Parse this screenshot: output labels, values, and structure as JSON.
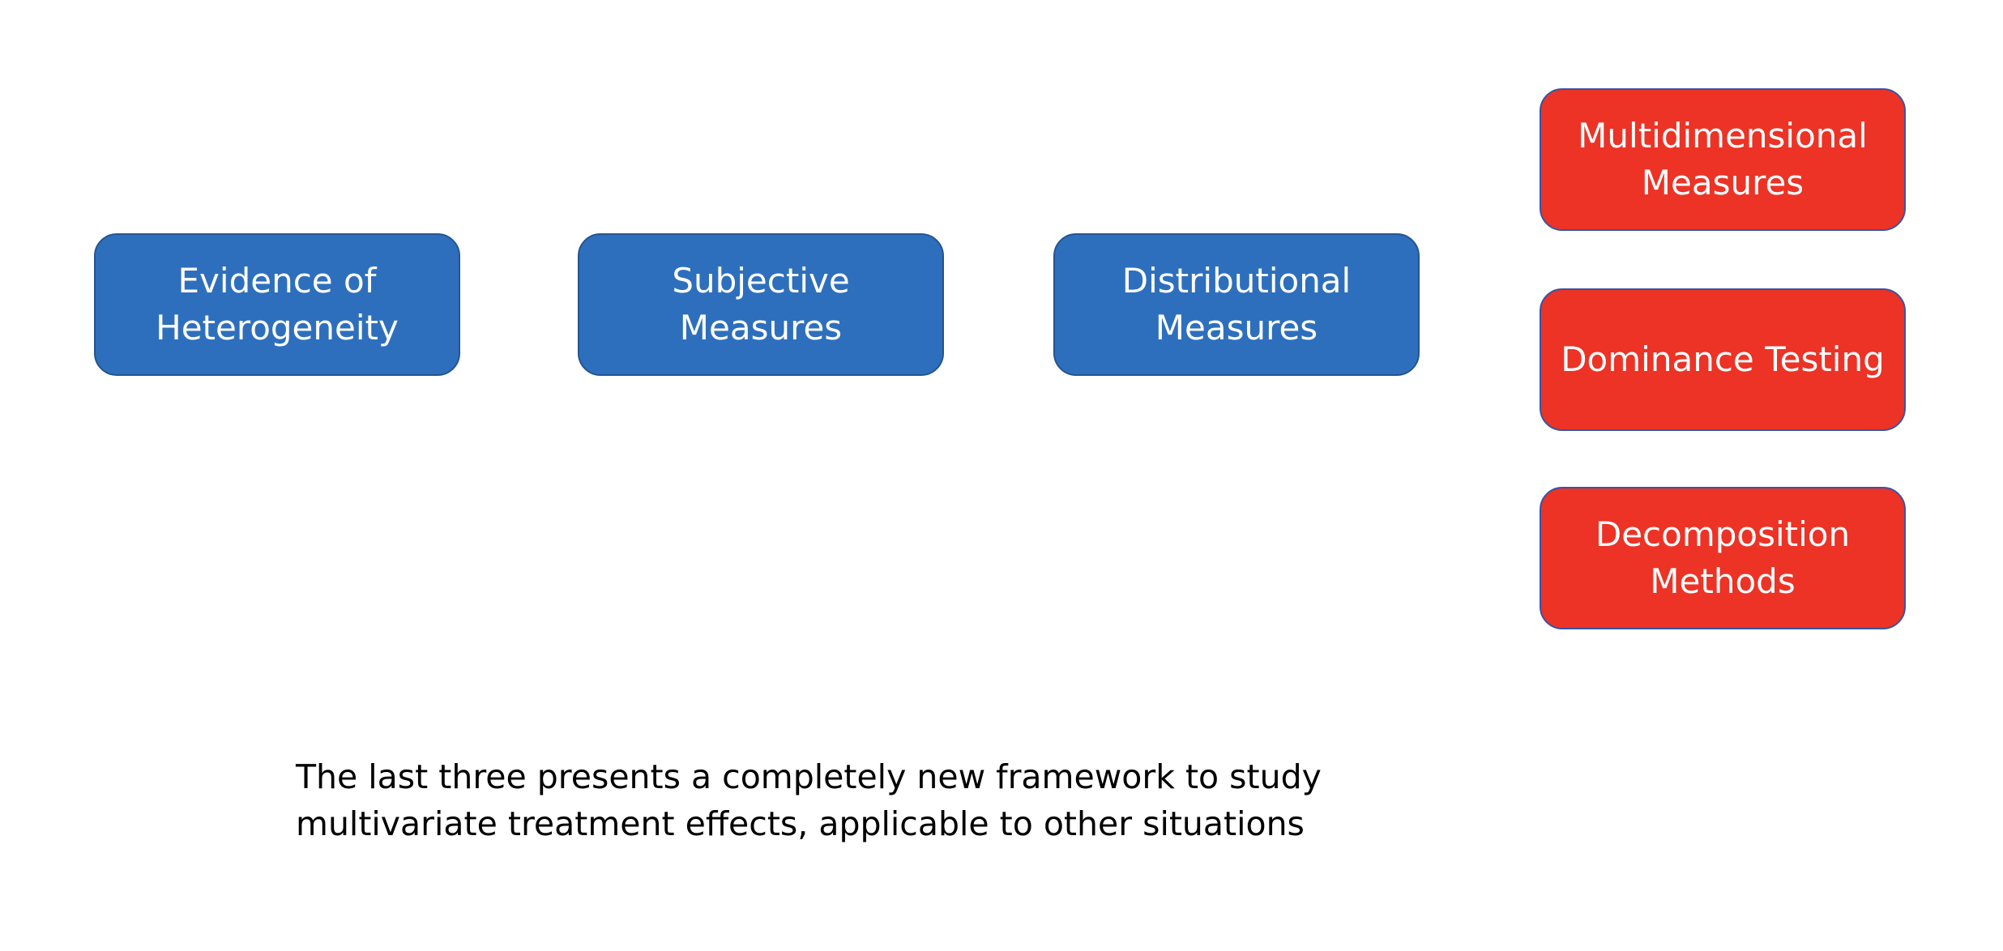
{
  "boxes": {
    "evidence": "Evidence of\nHeterogeneity",
    "subjective": "Subjective\nMeasures",
    "distributional": "Distributional\nMeasures",
    "multidimensional": "Multidimensional\nMeasures",
    "dominance": "Dominance Testing",
    "decomposition": "Decomposition\nMethods"
  },
  "caption": {
    "line1": "The last three presents a completely new framework to study",
    "line2": "multivariate treatment effects, applicable to other situations"
  },
  "colors": {
    "blue_box": "#2e6fbd",
    "red_box": "#ec3326"
  }
}
